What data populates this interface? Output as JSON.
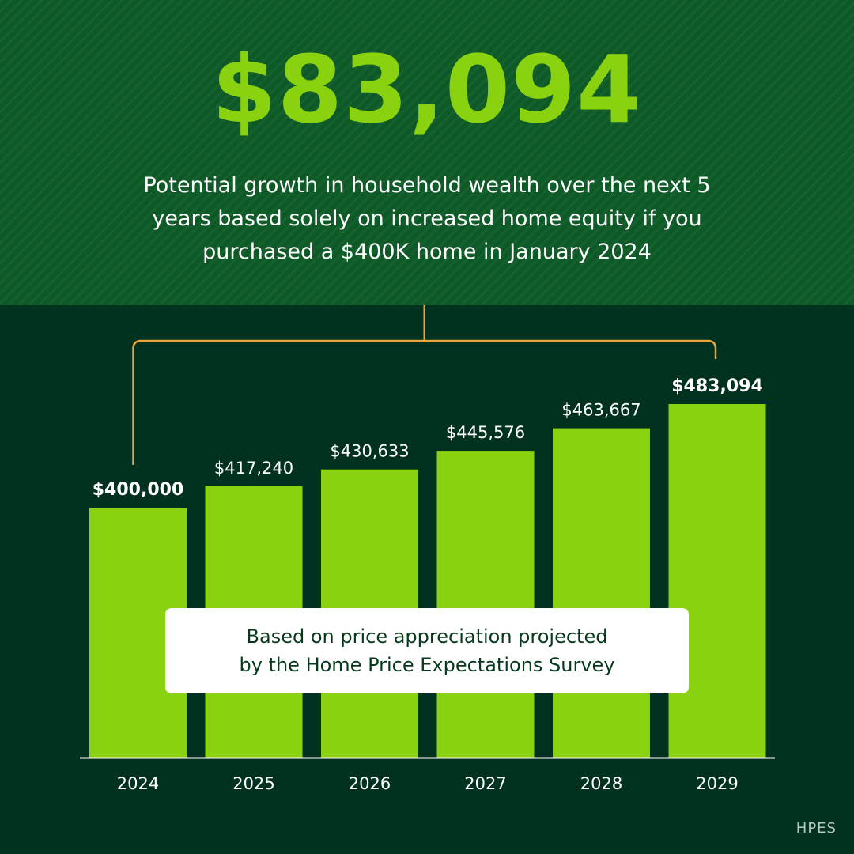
{
  "headline": "$83,094",
  "subtitle_lines": [
    "Potential growth in household wealth over the next 5",
    "years based solely on increased home equity if you",
    "purchased a $400K home in January 2024"
  ],
  "note_lines": [
    "Based on price appreciation projected",
    "by the Home Price Expectations Survey"
  ],
  "source": "HPES",
  "colors": {
    "bar": "#8ad20f",
    "headline": "#8ad20f",
    "bracket": "#e8a33a",
    "background_top": "#0d5a27",
    "background_bottom": "#013220"
  },
  "chart_data": {
    "type": "bar",
    "categories": [
      "2024",
      "2025",
      "2026",
      "2027",
      "2028",
      "2029"
    ],
    "values": [
      400000,
      417240,
      430633,
      445576,
      463667,
      483094
    ],
    "value_labels": [
      "$400,000",
      "$417,240",
      "$430,633",
      "$445,576",
      "$463,667",
      "$483,094"
    ],
    "emphasized": [
      "2024",
      "2029"
    ],
    "xlabel": "",
    "ylabel": "",
    "grid": false,
    "legend": "none"
  }
}
